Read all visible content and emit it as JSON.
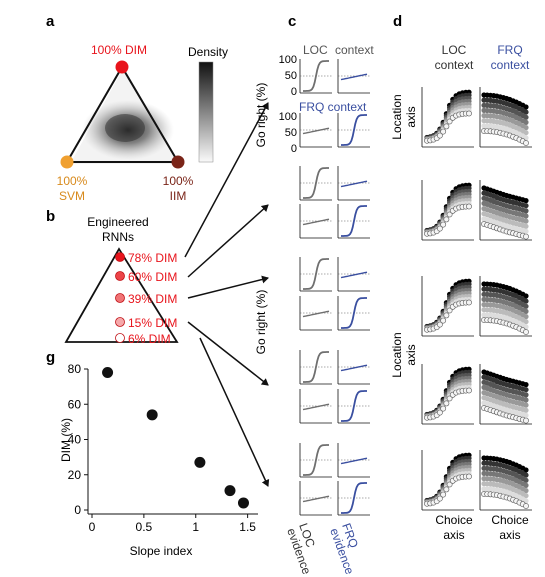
{
  "panels": {
    "a": "a",
    "b": "b",
    "c": "c",
    "d": "d",
    "g": "g"
  },
  "a": {
    "top": "100% DIM",
    "left_pct": "100%",
    "left_name": "SVM",
    "right_pct": "100%",
    "right_name": "IIM",
    "colorbar": "Density",
    "colors": {
      "dim": "#e8141c",
      "svm": "#f0a030",
      "iim": "#7a2418"
    }
  },
  "b": {
    "title_line1": "Engineered",
    "title_line2": "RNNs",
    "rnns": [
      {
        "label": "78% DIM",
        "fill": "#e8141c"
      },
      {
        "label": "60% DIM",
        "fill": "#ec4448"
      },
      {
        "label": "39% DIM",
        "fill": "#f07476"
      },
      {
        "label": "15% DIM",
        "fill": "#f5a8aa"
      },
      {
        "label": "6% DIM",
        "fill": "#ffffff"
      }
    ]
  },
  "c": {
    "header_left": "LOC",
    "header_right": "context",
    "frq_header": "FRQ context",
    "ylabel": "Go right (%)",
    "yticks": [
      "100",
      "50",
      "0"
    ],
    "xlabel_left_1": "LOC",
    "xlabel_left_2": "evidence",
    "xlabel_right_1": "FRQ",
    "xlabel_right_2": "evidence",
    "loc_color": "#6f6f6f",
    "frq_color": "#3a4fa0"
  },
  "d": {
    "loc_col_1": "LOC",
    "loc_col_2": "context",
    "frq_col_1": "FRQ",
    "frq_col_2": "context",
    "ylabel_1": "Location",
    "ylabel_2": "axis",
    "xlabel_1": "Choice",
    "xlabel_2": "axis"
  },
  "chart_data": {
    "type": "scatter",
    "title": "",
    "xlabel": "Slope index",
    "ylabel": "DIM (%)",
    "x": [
      0.15,
      0.58,
      1.04,
      1.33,
      1.46
    ],
    "y": [
      78,
      54,
      27,
      11,
      4
    ],
    "xlim": [
      0,
      1.6
    ],
    "ylim": [
      0,
      80
    ],
    "xticks": [
      0,
      0.5,
      1,
      1.5
    ],
    "yticks": [
      0,
      20,
      40,
      60,
      80
    ],
    "xtick_labels": [
      "0",
      "0.5",
      "1",
      "1.5"
    ],
    "ytick_labels": [
      "0",
      "20",
      "40",
      "60",
      "80"
    ]
  }
}
